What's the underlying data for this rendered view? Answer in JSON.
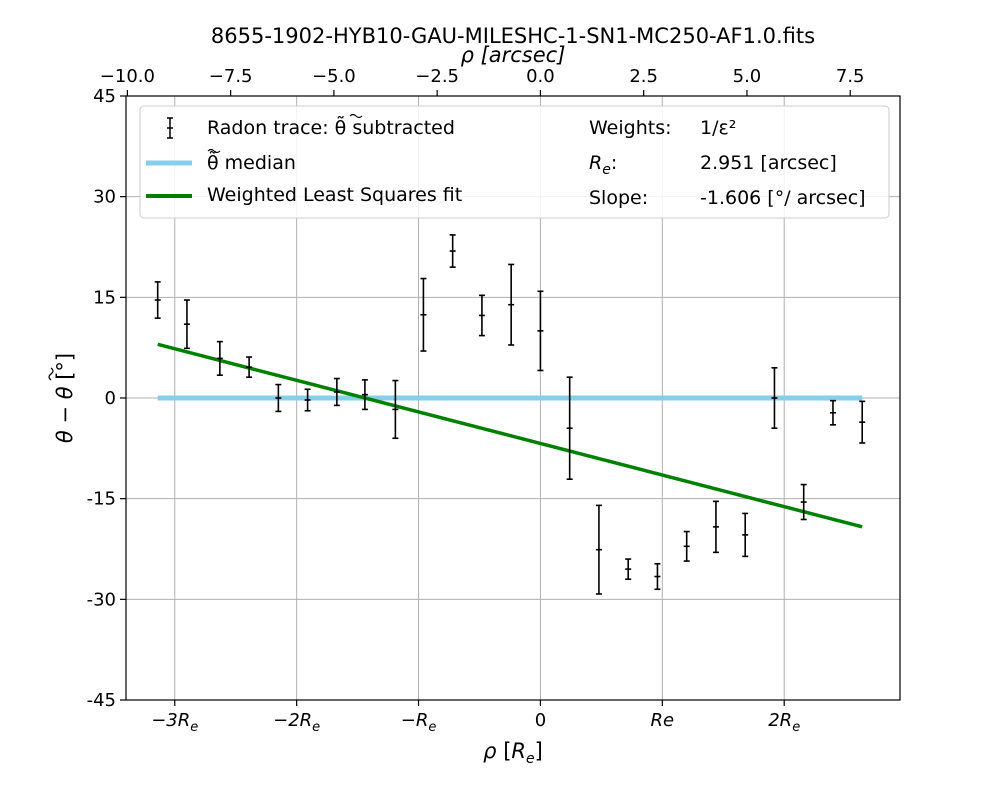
{
  "figure_title": "8655-1902-HYB10-GAU-MILESHC-1-SN1-MC250-AF1.0.fits",
  "chart_data": {
    "type": "scatter",
    "title": "8655-1902-HYB10-GAU-MILESHC-1-SN1-MC250-AF1.0.fits",
    "xlabel": "ρ [R_e]",
    "ylabel": "θ − θ̃ [°]",
    "xlabel_top": "ρ [arcsec]",
    "xlim": [
      -3.4,
      2.95
    ],
    "ylim": [
      -45,
      45
    ],
    "x_ticks": [
      {
        "value": -3,
        "label": "−3R",
        "sub": "e"
      },
      {
        "value": -2,
        "label": "−2R",
        "sub": "e"
      },
      {
        "value": -1,
        "label": "−R",
        "sub": "e"
      },
      {
        "value": 0,
        "label": "0",
        "sub": ""
      },
      {
        "value": 1,
        "label": "Re",
        "sub": ""
      },
      {
        "value": 2,
        "label": "2R",
        "sub": "e"
      }
    ],
    "y_ticks": [
      {
        "value": -45,
        "label": "-45"
      },
      {
        "value": -30,
        "label": "-30"
      },
      {
        "value": -15,
        "label": "-15"
      },
      {
        "value": 0,
        "label": "0"
      },
      {
        "value": 15,
        "label": "15"
      },
      {
        "value": 30,
        "label": "30"
      },
      {
        "value": 45,
        "label": "45"
      }
    ],
    "top_ticks": [
      {
        "value": -10.0,
        "label": "−10.0"
      },
      {
        "value": -7.5,
        "label": "−7.5"
      },
      {
        "value": -5.0,
        "label": "−5.0"
      },
      {
        "value": -2.5,
        "label": "−2.5"
      },
      {
        "value": 0.0,
        "label": "0.0"
      },
      {
        "value": 2.5,
        "label": "2.5"
      },
      {
        "value": 5.0,
        "label": "5.0"
      },
      {
        "value": 7.5,
        "label": "7.5"
      }
    ],
    "grid": true,
    "legend_position": "top",
    "series": [
      {
        "name": "Radon trace: θ̃ subtracted",
        "kind": "errorbar",
        "color": "#000000",
        "points": [
          {
            "x": -3.14,
            "y": 14.6,
            "err": 2.7
          },
          {
            "x": -2.9,
            "y": 11.0,
            "err": 3.6
          },
          {
            "x": -2.63,
            "y": 5.9,
            "err": 2.5
          },
          {
            "x": -2.39,
            "y": 4.6,
            "err": 1.5
          },
          {
            "x": -2.15,
            "y": 0.0,
            "err": 2.0
          },
          {
            "x": -1.91,
            "y": -0.3,
            "err": 1.6
          },
          {
            "x": -1.67,
            "y": 0.9,
            "err": 2.0
          },
          {
            "x": -1.44,
            "y": 0.5,
            "err": 2.2
          },
          {
            "x": -1.19,
            "y": -1.7,
            "err": 4.3
          },
          {
            "x": -0.96,
            "y": 12.4,
            "err": 5.4
          },
          {
            "x": -0.72,
            "y": 21.9,
            "err": 2.4
          },
          {
            "x": -0.48,
            "y": 12.3,
            "err": 3.0
          },
          {
            "x": -0.24,
            "y": 13.9,
            "err": 6.0
          },
          {
            "x": 0.0,
            "y": 10.0,
            "err": 5.9
          },
          {
            "x": 0.24,
            "y": -4.5,
            "err": 7.6
          },
          {
            "x": 0.48,
            "y": -22.6,
            "err": 6.6
          },
          {
            "x": 0.72,
            "y": -25.5,
            "err": 1.5
          },
          {
            "x": 0.96,
            "y": -26.6,
            "err": 1.9
          },
          {
            "x": 1.2,
            "y": -22.1,
            "err": 2.2
          },
          {
            "x": 1.44,
            "y": -19.2,
            "err": 3.8
          },
          {
            "x": 1.68,
            "y": -20.4,
            "err": 3.2
          },
          {
            "x": 1.92,
            "y": 0.0,
            "err": 4.5
          },
          {
            "x": 2.16,
            "y": -15.5,
            "err": 2.6
          },
          {
            "x": 2.4,
            "y": -2.2,
            "err": 1.8
          },
          {
            "x": 2.64,
            "y": -3.6,
            "err": 3.1
          }
        ]
      },
      {
        "name": "θ̃ median",
        "kind": "line",
        "color": "#87ceeb",
        "x": [
          -3.14,
          2.64
        ],
        "y": [
          0,
          0
        ]
      },
      {
        "name": "Weighted Least Squares fit",
        "kind": "line",
        "color": "#008000",
        "x": [
          -3.14,
          2.64
        ],
        "y": [
          8.0,
          -19.2
        ]
      }
    ],
    "annotations": {
      "weights_label": "Weights:",
      "weights_value": "1/ε²",
      "re_label": "R_e:",
      "re_value": "2.951 [arcsec]",
      "slope_label": "Slope:",
      "slope_value": "-1.606 [°/ arcsec]"
    }
  }
}
